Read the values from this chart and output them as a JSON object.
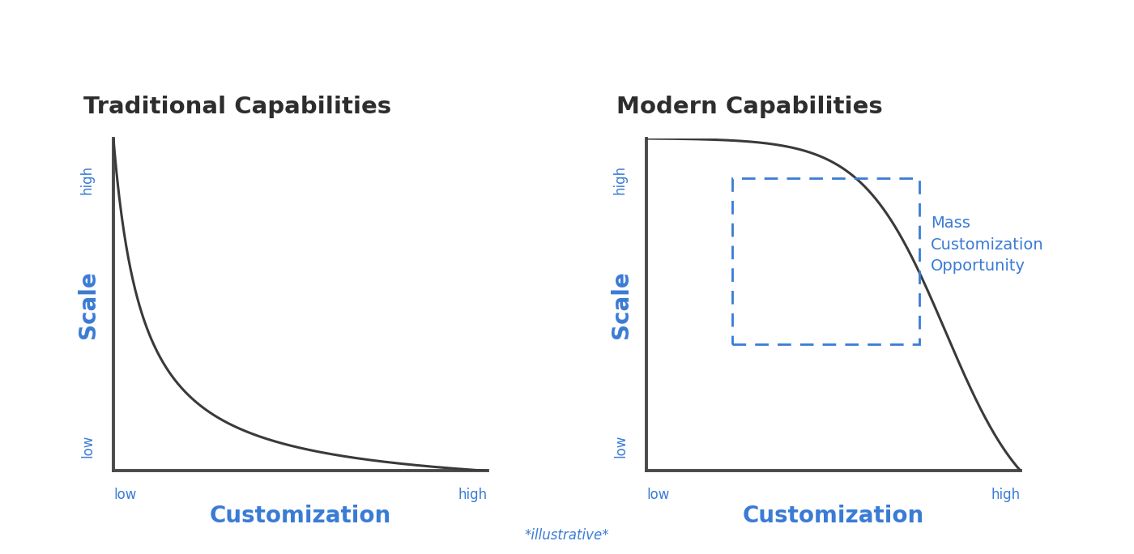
{
  "title_left": "Traditional Capabilities",
  "title_right": "Modern Capabilities",
  "xlabel": "Customization",
  "ylabel": "Scale",
  "tick_low": "low",
  "tick_high": "high",
  "note": "*illustrative*",
  "annotation": "Mass\nCustomization\nOpportunity",
  "title_color": "#2d2d2d",
  "axis_color": "#4a4a4a",
  "curve_color": "#3a3a3a",
  "label_color": "#3a7bd5",
  "dashed_box_color": "#3a7bd5",
  "annotation_color": "#3a7bd5",
  "background_color": "#ffffff",
  "title_fontsize": 21,
  "axis_label_fontsize": 20,
  "tick_label_fontsize": 12,
  "note_fontsize": 12,
  "annotation_fontsize": 14
}
